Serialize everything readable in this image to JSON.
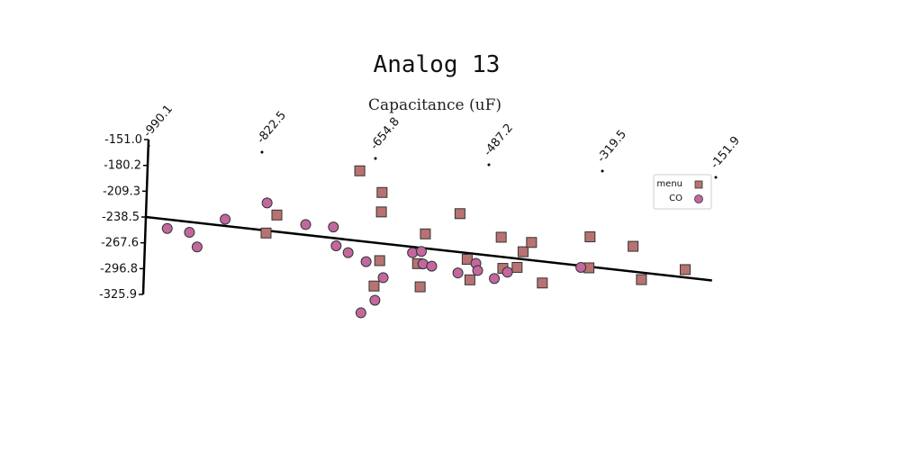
{
  "chart_data": {
    "type": "scatter",
    "title": "Analog 13",
    "xlabel": "Capacitance (uF)",
    "ylabel": "",
    "x_ticks": [
      -990.1,
      -822.5,
      -654.8,
      -487.2,
      -319.5,
      -151.9
    ],
    "y_ticks": [
      -151.0,
      -180.2,
      -209.3,
      -238.5,
      -267.6,
      -296.8,
      -325.9
    ],
    "xlim": [
      -990.1,
      -151.9
    ],
    "ylim": [
      -325.9,
      -151.0
    ],
    "legend": {
      "placement": "right",
      "entries": [
        "menu",
        "CO"
      ]
    },
    "grid": false,
    "series": [
      {
        "name": "menu",
        "marker": "square",
        "color": "#b87272",
        "points": [
          [
            -677,
            -173
          ],
          [
            -643,
            -196
          ],
          [
            -643,
            -218
          ],
          [
            -812,
            -249
          ],
          [
            -797,
            -228
          ],
          [
            -643,
            -273
          ],
          [
            -650,
            -302
          ],
          [
            -587,
            -274
          ],
          [
            -582,
            -300
          ],
          [
            -577,
            -240
          ],
          [
            -527,
            -215
          ],
          [
            -514,
            -266
          ],
          [
            -509,
            -289
          ],
          [
            -465,
            -239
          ],
          [
            -461,
            -274
          ],
          [
            -440,
            -272
          ],
          [
            -432,
            -254
          ],
          [
            -420,
            -243
          ],
          [
            -402,
            -288
          ],
          [
            -334,
            -233
          ],
          [
            -334,
            -268
          ],
          [
            -270,
            -241
          ],
          [
            -256,
            -278
          ],
          [
            -192,
            -264
          ]
        ]
      },
      {
        "name": "CO",
        "marker": "circle",
        "color": "#c2689e",
        "points": [
          [
            -958,
            -250
          ],
          [
            -925,
            -253
          ],
          [
            -913,
            -269
          ],
          [
            -873,
            -236
          ],
          [
            -812,
            -215
          ],
          [
            -754,
            -237
          ],
          [
            -713,
            -238
          ],
          [
            -708,
            -259
          ],
          [
            -690,
            -266
          ],
          [
            -663,
            -275
          ],
          [
            -648,
            -318
          ],
          [
            -637,
            -292
          ],
          [
            -668,
            -333
          ],
          [
            -595,
            -262
          ],
          [
            -582,
            -260
          ],
          [
            -579,
            -274
          ],
          [
            -566,
            -276
          ],
          [
            -527,
            -282
          ],
          [
            -501,
            -270
          ],
          [
            -498,
            -278
          ],
          [
            -473,
            -286
          ],
          [
            -454,
            -278
          ],
          [
            -346,
            -268
          ]
        ]
      }
    ],
    "trend_line": {
      "x": [
        -990.1,
        -151.9
      ],
      "y": [
        -238.5,
        -274.5
      ]
    }
  }
}
